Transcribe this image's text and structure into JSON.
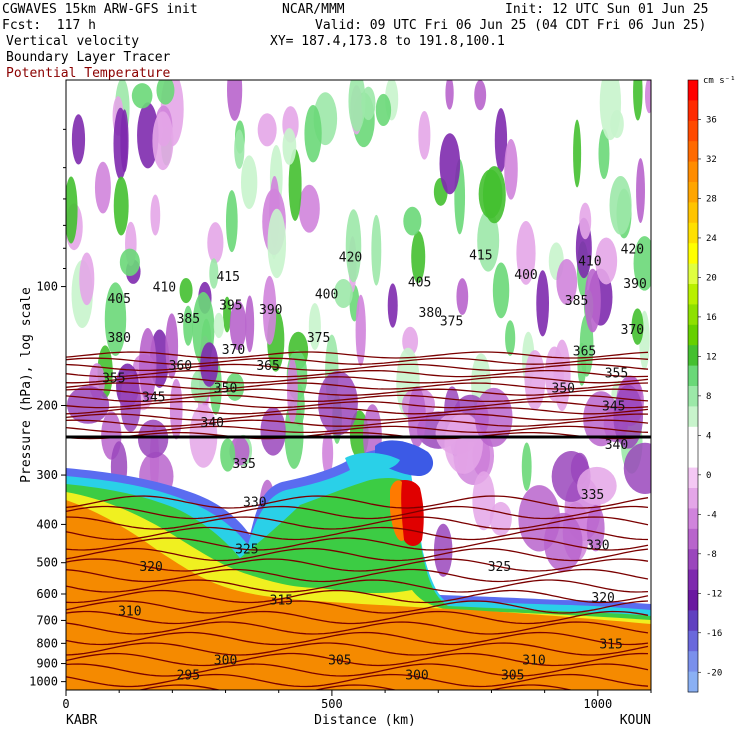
{
  "header": {
    "line1_left": "CGWAVES 15km ARW-GFS init",
    "line1_center": "NCAR/MMM",
    "line1_right": "Init: 12 UTC Sun 01 Jun 25",
    "line2_left": "Fcst:  117 h",
    "line2_right": "Valid: 09 UTC Fri 06 Jun 25 (04 CDT Fri 06 Jun 25)",
    "line3_left": "Vertical velocity",
    "line3_right": "XY= 187.4,173.8 to 191.8,100.1",
    "line4_left": "Boundary Layer Tracer",
    "line5_left": "Potential Temperature",
    "theta_color": "#8b0000"
  },
  "colorbar": {
    "unit": "cm s⁻¹",
    "labels": [
      "36",
      "32",
      "28",
      "24",
      "20",
      "16",
      "12",
      "8",
      "4",
      "0",
      "-4",
      "-8",
      "-12",
      "-16",
      "-20"
    ],
    "colors": [
      "#ff0000",
      "#ff2a00",
      "#ff4a00",
      "#ff6a00",
      "#ff8c00",
      "#ffa500",
      "#ffc400",
      "#ffe000",
      "#ffff00",
      "#e0ff40",
      "#b8f000",
      "#8ee000",
      "#66d000",
      "#44c030",
      "#6ad878",
      "#9ce8a8",
      "#c8f4cc",
      "#ffffff",
      "#ffffff",
      "#f4c8f4",
      "#e4a6e8",
      "#d084dc",
      "#b864cc",
      "#9a46bc",
      "#7e2aae",
      "#6a18a0",
      "#6040c0",
      "#6a68dc",
      "#7a90ec",
      "#8ab0f4"
    ]
  },
  "axes": {
    "ylabel": "Pressure (hPa), log scale",
    "yticks": [
      "100",
      "200",
      "300",
      "400",
      "500",
      "600",
      "700",
      "800",
      "900",
      "1000"
    ],
    "xlabel": "Distance (km)",
    "xticks": [
      "0",
      "500",
      "1000"
    ],
    "left_station": "KABR",
    "right_station": "KOUN"
  },
  "chart_data": {
    "type": "heatmap",
    "title": "Vertical velocity",
    "xlabel": "Distance (km)",
    "ylabel": "Pressure (hPa), log scale",
    "xlim": [
      0,
      1100
    ],
    "ylim": [
      1050,
      30
    ],
    "y_scale": "log",
    "colorbar_unit": "cm s-1",
    "colorbar_range": [
      -22,
      40
    ],
    "overlays": [
      "Boundary Layer Tracer",
      "Potential Temperature"
    ],
    "theta_contours": [
      {
        "level": "295",
        "x": 230,
        "p": 960
      },
      {
        "level": "300",
        "x": 300,
        "p": 880
      },
      {
        "level": "300",
        "x": 660,
        "p": 960
      },
      {
        "level": "305",
        "x": 515,
        "p": 880
      },
      {
        "level": "305",
        "x": 840,
        "p": 960
      },
      {
        "level": "310",
        "x": 120,
        "p": 660
      },
      {
        "level": "310",
        "x": 880,
        "p": 880
      },
      {
        "level": "315",
        "x": 405,
        "p": 620
      },
      {
        "level": "315",
        "x": 1025,
        "p": 800
      },
      {
        "level": "320",
        "x": 160,
        "p": 510
      },
      {
        "level": "320",
        "x": 1010,
        "p": 610
      },
      {
        "level": "325",
        "x": 340,
        "p": 460
      },
      {
        "level": "325",
        "x": 815,
        "p": 510
      },
      {
        "level": "330",
        "x": 355,
        "p": 350
      },
      {
        "level": "330",
        "x": 1000,
        "p": 450
      },
      {
        "level": "335",
        "x": 335,
        "p": 280
      },
      {
        "level": "335",
        "x": 990,
        "p": 335
      },
      {
        "level": "340",
        "x": 275,
        "p": 220
      },
      {
        "level": "340",
        "x": 1035,
        "p": 250
      },
      {
        "level": "345",
        "x": 165,
        "p": 190
      },
      {
        "level": "345",
        "x": 1030,
        "p": 200
      },
      {
        "level": "350",
        "x": 300,
        "p": 180
      },
      {
        "level": "350",
        "x": 935,
        "p": 180
      },
      {
        "level": "355",
        "x": 90,
        "p": 170
      },
      {
        "level": "355",
        "x": 1035,
        "p": 165
      },
      {
        "level": "360",
        "x": 215,
        "p": 158
      },
      {
        "level": "365",
        "x": 380,
        "p": 158
      },
      {
        "level": "365",
        "x": 975,
        "p": 145
      },
      {
        "level": "370",
        "x": 315,
        "p": 144
      },
      {
        "level": "370",
        "x": 1065,
        "p": 128
      },
      {
        "level": "375",
        "x": 475,
        "p": 134
      },
      {
        "level": "375",
        "x": 725,
        "p": 122
      },
      {
        "level": "380",
        "x": 100,
        "p": 134
      },
      {
        "level": "380",
        "x": 685,
        "p": 116
      },
      {
        "level": "385",
        "x": 230,
        "p": 120
      },
      {
        "level": "385",
        "x": 960,
        "p": 108
      },
      {
        "level": "390",
        "x": 385,
        "p": 114
      },
      {
        "level": "390",
        "x": 1070,
        "p": 98
      },
      {
        "level": "395",
        "x": 310,
        "p": 111
      },
      {
        "level": "400",
        "x": 490,
        "p": 104
      },
      {
        "level": "400",
        "x": 865,
        "p": 93
      },
      {
        "level": "405",
        "x": 100,
        "p": 107
      },
      {
        "level": "405",
        "x": 665,
        "p": 97
      },
      {
        "level": "410",
        "x": 185,
        "p": 100
      },
      {
        "level": "410",
        "x": 985,
        "p": 86
      },
      {
        "level": "415",
        "x": 305,
        "p": 94
      },
      {
        "level": "415",
        "x": 780,
        "p": 83
      },
      {
        "level": "420",
        "x": 535,
        "p": 84
      },
      {
        "level": "420",
        "x": 1065,
        "p": 80
      }
    ]
  }
}
